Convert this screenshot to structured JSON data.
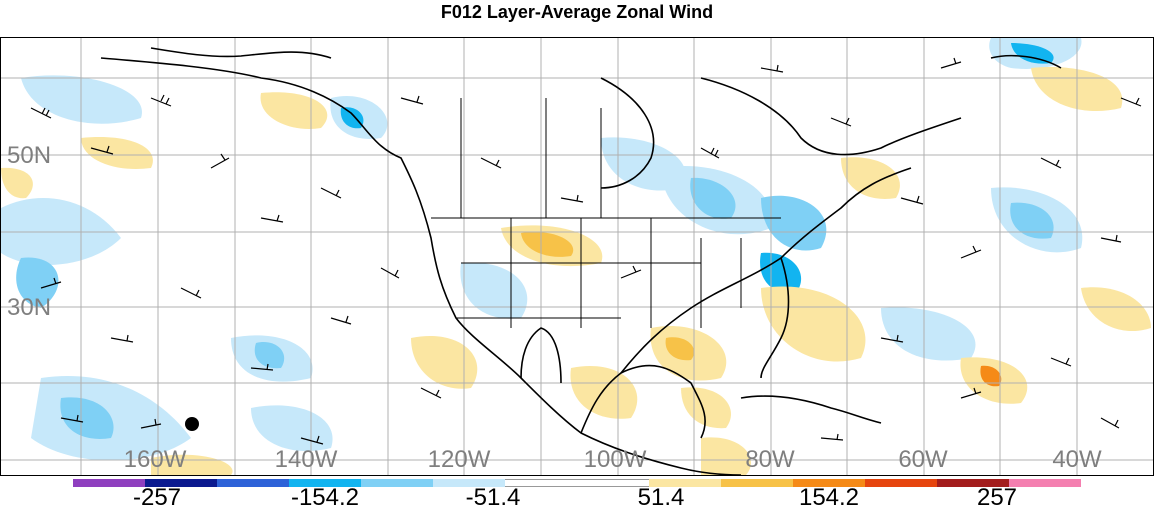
{
  "title": "F012 Layer-Average Zonal Wind",
  "map": {
    "projection": "cylindrical",
    "lat_labels": [
      "50N",
      "30N"
    ],
    "lon_labels": [
      "160W",
      "140W",
      "120W",
      "100W",
      "80W",
      "60W",
      "40W"
    ],
    "label_color": "#7f7f7f",
    "grid_color": "#b0b0b0",
    "coast_color": "#000000"
  },
  "colorbar": {
    "colors": [
      "#8f3fbf",
      "#0b1a8f",
      "#2d62d8",
      "#12b4f0",
      "#7fd0f5",
      "#c6e8fa",
      "#ffffff",
      "#ffffff",
      "#fbe6a2",
      "#f7c248",
      "#f58a17",
      "#e6450e",
      "#a31d1d",
      "#f47fb0"
    ],
    "labels": [
      "-257",
      "-154.2",
      "-51.4",
      "51.4",
      "154.2",
      "257"
    ]
  }
}
